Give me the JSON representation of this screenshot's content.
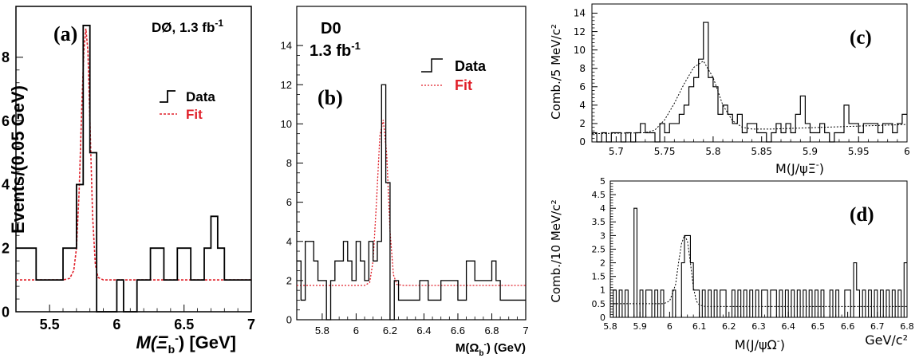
{
  "colors": {
    "data_line": "#000000",
    "fit_line": "#e0202a",
    "fit_line_dark": "#000000",
    "fit_text": "#e0202a"
  },
  "chart_data": [
    {
      "type": "line",
      "panel_label": "(a)",
      "experiment_label": "DØ, 1.3 fb",
      "experiment_sup": "-1",
      "ylabel": "Events/(0.05 GeV)",
      "xlabel_main": "M(Ξ",
      "xlabel_sub": "b",
      "xlabel_sup": "-",
      "xlabel_tail": ") [GeV]",
      "xlim": [
        5.25,
        7.0
      ],
      "ylim": [
        0,
        9.6
      ],
      "xticks": [
        5.5,
        6,
        6.5,
        7
      ],
      "xtick_labels": [
        "5.5",
        "6",
        "6.5",
        "7"
      ],
      "yticks": [
        0,
        2,
        4,
        6,
        8
      ],
      "ytick_labels": [
        "0",
        "2",
        "4",
        "6",
        "8"
      ],
      "legend": [
        "Data",
        "Fit"
      ],
      "series": [
        {
          "name": "Data",
          "bin_edges": [
            5.25,
            5.3,
            5.35,
            5.4,
            5.45,
            5.5,
            5.55,
            5.6,
            5.65,
            5.7,
            5.75,
            5.8,
            5.85,
            5.9,
            5.95,
            6.0,
            6.05,
            6.1,
            6.15,
            6.2,
            6.25,
            6.3,
            6.35,
            6.4,
            6.45,
            6.5,
            6.55,
            6.6,
            6.65,
            6.7,
            6.75,
            6.8,
            6.85,
            6.9,
            6.95,
            7.0
          ],
          "values": [
            2,
            2,
            2,
            1,
            1,
            1,
            1,
            2,
            2,
            4,
            9,
            5,
            0,
            0,
            0,
            1,
            0,
            0,
            1,
            1,
            2,
            2,
            1,
            1,
            2,
            2,
            1,
            1,
            2,
            3,
            2,
            1,
            1,
            1,
            1
          ]
        },
        {
          "name": "Fit",
          "x": [
            5.25,
            5.6,
            5.65,
            5.68,
            5.7,
            5.72,
            5.74,
            5.755,
            5.77,
            5.785,
            5.8,
            5.82,
            5.84,
            5.86,
            5.9,
            7.0
          ],
          "values": [
            1,
            1,
            1.05,
            1.3,
            2.0,
            3.8,
            6.5,
            8.2,
            8.9,
            8.2,
            6.0,
            3.0,
            1.5,
            1.08,
            1,
            1
          ]
        }
      ]
    },
    {
      "type": "line",
      "panel_label": "(b)",
      "experiment_label": "D0",
      "lumi_label": "1.3 fb",
      "lumi_sup": "-1",
      "ylabel": "",
      "xlabel_main": "M(Ω",
      "xlabel_sub": "b",
      "xlabel_sup": "-",
      "xlabel_tail": ") (GeV)",
      "xlim": [
        5.65,
        7.0
      ],
      "ylim": [
        0,
        16
      ],
      "xticks": [
        5.8,
        6,
        6.2,
        6.4,
        6.6,
        6.8,
        7
      ],
      "xtick_labels": [
        "5.8",
        "6",
        "6.2",
        "6.4",
        "6.6",
        "6.8",
        "7"
      ],
      "yticks": [
        0,
        2,
        4,
        6,
        8,
        10,
        12,
        14
      ],
      "ytick_labels": [
        "0",
        "2",
        "4",
        "6",
        "8",
        "10",
        "12",
        "14"
      ],
      "legend": [
        "Data",
        "Fit"
      ],
      "series": [
        {
          "name": "Data",
          "bin_edges": [
            5.65,
            5.675,
            5.7,
            5.725,
            5.75,
            5.775,
            5.8,
            5.825,
            5.85,
            5.875,
            5.9,
            5.925,
            5.95,
            5.975,
            6.0,
            6.025,
            6.05,
            6.075,
            6.1,
            6.125,
            6.15,
            6.175,
            6.2,
            6.225,
            6.25,
            6.275,
            6.3,
            6.325,
            6.35,
            6.375,
            6.4,
            6.425,
            6.45,
            6.475,
            6.5,
            6.525,
            6.55,
            6.575,
            6.6,
            6.625,
            6.65,
            6.675,
            6.7,
            6.725,
            6.75,
            6.775,
            6.8,
            6.825,
            6.85,
            6.875,
            6.9,
            6.925,
            6.95,
            6.975,
            7.0
          ],
          "values": [
            3,
            1,
            4,
            4,
            3,
            2,
            2,
            0,
            2,
            3,
            3,
            4,
            3,
            2,
            4,
            3,
            2,
            4,
            3,
            4,
            12,
            7,
            0,
            2,
            1,
            1,
            1,
            1,
            1,
            2,
            2,
            1,
            1,
            1,
            2,
            2,
            2,
            2,
            1,
            1,
            3,
            3,
            2,
            2,
            2,
            2,
            3,
            2,
            1,
            1,
            1,
            1,
            1,
            1
          ]
        },
        {
          "name": "Fit",
          "x": [
            5.65,
            6.05,
            6.08,
            6.1,
            6.12,
            6.14,
            6.16,
            6.18,
            6.2,
            6.22,
            6.24,
            6.28,
            7.0
          ],
          "values": [
            1.75,
            1.75,
            1.9,
            3.0,
            6.0,
            9.4,
            10.2,
            8.5,
            4.5,
            2.3,
            1.8,
            1.75,
            1.75
          ]
        }
      ]
    },
    {
      "type": "line",
      "panel_label": "(c)",
      "ylabel": "Comb./5 MeV/c²",
      "xlabel_main": "M(J/ψΞ",
      "xlabel_sup": "-",
      "xlabel_tail": ")",
      "xlim": [
        5.675,
        6.0
      ],
      "ylim": [
        0,
        15
      ],
      "xticks": [
        5.7,
        5.75,
        5.8,
        5.85,
        5.9,
        5.95,
        6
      ],
      "xtick_labels": [
        "5.7",
        "5.75",
        "5.8",
        "5.85",
        "5.9",
        "5.95",
        "6"
      ],
      "yticks": [
        0,
        2,
        4,
        6,
        8,
        10,
        12,
        14
      ],
      "ytick_labels": [
        "0",
        "2",
        "4",
        "6",
        "8",
        "10",
        "12",
        "14"
      ],
      "series": [
        {
          "name": "",
          "bin_edges": [
            5.675,
            5.68,
            5.685,
            5.69,
            5.695,
            5.7,
            5.705,
            5.71,
            5.715,
            5.72,
            5.725,
            5.73,
            5.735,
            5.74,
            5.745,
            5.75,
            5.755,
            5.76,
            5.765,
            5.77,
            5.775,
            5.78,
            5.785,
            5.79,
            5.795,
            5.8,
            5.805,
            5.81,
            5.815,
            5.82,
            5.825,
            5.83,
            5.835,
            5.84,
            5.845,
            5.85,
            5.855,
            5.86,
            5.865,
            5.87,
            5.875,
            5.88,
            5.885,
            5.89,
            5.895,
            5.9,
            5.905,
            5.91,
            5.915,
            5.92,
            5.925,
            5.93,
            5.935,
            5.94,
            5.945,
            5.95,
            5.955,
            5.96,
            5.965,
            5.97,
            5.975,
            5.98,
            5.985,
            5.99,
            5.995,
            6.0
          ],
          "values": [
            1,
            0,
            1,
            0,
            1,
            1,
            0,
            1,
            0,
            1,
            2,
            1,
            1,
            0,
            2,
            1,
            2,
            2,
            3,
            4,
            6,
            7,
            9,
            13,
            7,
            6,
            3,
            4,
            3,
            2,
            3,
            1,
            2,
            2,
            1,
            1,
            0,
            1,
            2,
            1,
            2,
            1,
            3,
            5,
            2,
            1,
            1,
            2,
            1,
            0,
            1,
            1,
            4,
            2,
            2,
            1,
            2,
            2,
            2,
            1,
            2,
            2,
            1,
            2,
            3
          ]
        },
        {
          "name": "Fit",
          "x": [
            5.675,
            5.73,
            5.74,
            5.75,
            5.76,
            5.77,
            5.78,
            5.79,
            5.8,
            5.81,
            5.82,
            5.83,
            5.84,
            5.86,
            6.0
          ],
          "values": [
            0.9,
            1.0,
            1.3,
            2.4,
            4.2,
            6.3,
            8.1,
            8.8,
            7.0,
            4.0,
            2.3,
            1.6,
            1.4,
            1.4,
            1.9
          ]
        }
      ]
    },
    {
      "type": "line",
      "panel_label": "(d)",
      "ylabel": "Comb./10 MeV/c²",
      "xlabel_main": "M(J/ψΩ",
      "xlabel_sup": "-",
      "xlabel_tail": ")",
      "xunit": "GeV/c²",
      "xlim": [
        5.8,
        6.8
      ],
      "ylim": [
        0,
        5
      ],
      "xticks": [
        5.8,
        5.9,
        6,
        6.1,
        6.2,
        6.3,
        6.4,
        6.5,
        6.6,
        6.7,
        6.8
      ],
      "xtick_labels": [
        "5.8",
        "5.9",
        "6",
        "6.1",
        "6.2",
        "6.3",
        "6.4",
        "6.5",
        "6.6",
        "6.7",
        "6.8"
      ],
      "yticks": [
        0,
        0.5,
        1,
        1.5,
        2,
        2.5,
        3,
        3.5,
        4,
        4.5,
        5
      ],
      "ytick_labels": [
        "0",
        "0.5",
        "1",
        "1.5",
        "2",
        "2.5",
        "3",
        "3.5",
        "4",
        "4.5",
        "5"
      ],
      "series": [
        {
          "name": "",
          "bin_edges": [
            5.8,
            5.81,
            5.82,
            5.83,
            5.84,
            5.85,
            5.86,
            5.87,
            5.88,
            5.89,
            5.9,
            5.91,
            5.92,
            5.93,
            5.94,
            5.95,
            5.96,
            5.97,
            5.98,
            5.99,
            6.0,
            6.01,
            6.02,
            6.03,
            6.04,
            6.05,
            6.06,
            6.07,
            6.08,
            6.09,
            6.1,
            6.11,
            6.12,
            6.13,
            6.14,
            6.15,
            6.16,
            6.17,
            6.18,
            6.19,
            6.2,
            6.21,
            6.22,
            6.23,
            6.24,
            6.25,
            6.26,
            6.27,
            6.28,
            6.29,
            6.3,
            6.31,
            6.32,
            6.33,
            6.34,
            6.35,
            6.36,
            6.37,
            6.38,
            6.39,
            6.4,
            6.41,
            6.42,
            6.43,
            6.44,
            6.45,
            6.46,
            6.47,
            6.48,
            6.49,
            6.5,
            6.51,
            6.52,
            6.53,
            6.54,
            6.55,
            6.56,
            6.57,
            6.58,
            6.59,
            6.6,
            6.61,
            6.62,
            6.63,
            6.64,
            6.65,
            6.66,
            6.67,
            6.68,
            6.69,
            6.7,
            6.71,
            6.72,
            6.73,
            6.74,
            6.75,
            6.76,
            6.77,
            6.78,
            6.79,
            6.8
          ],
          "values": [
            0,
            1,
            0,
            1,
            0,
            1,
            0,
            0,
            4,
            0,
            1,
            0,
            1,
            1,
            0,
            1,
            0,
            1,
            0,
            0,
            0,
            1,
            0,
            0,
            2,
            3,
            3,
            2,
            1,
            1,
            0,
            1,
            0,
            1,
            0,
            1,
            0,
            1,
            1,
            0,
            0,
            1,
            0,
            1,
            0,
            1,
            0,
            1,
            0,
            1,
            0,
            1,
            1,
            0,
            1,
            1,
            0,
            1,
            0,
            1,
            0,
            1,
            0,
            1,
            0,
            1,
            0,
            1,
            0,
            1,
            0,
            1,
            0,
            0,
            1,
            0,
            1,
            0,
            0,
            1,
            1,
            0,
            2,
            1,
            0,
            1,
            0,
            1,
            0,
            1,
            0,
            1,
            0,
            1,
            0,
            1,
            0,
            1,
            0,
            2
          ]
        },
        {
          "name": "Fit",
          "x": [
            5.8,
            5.98,
            6.0,
            6.02,
            6.03,
            6.04,
            6.05,
            6.06,
            6.07,
            6.08,
            6.09,
            6.1,
            6.12,
            6.8
          ],
          "values": [
            0.5,
            0.5,
            0.6,
            1.2,
            2.0,
            2.7,
            3.0,
            2.8,
            2.0,
            1.1,
            0.6,
            0.45,
            0.4,
            0.4
          ]
        }
      ]
    }
  ]
}
